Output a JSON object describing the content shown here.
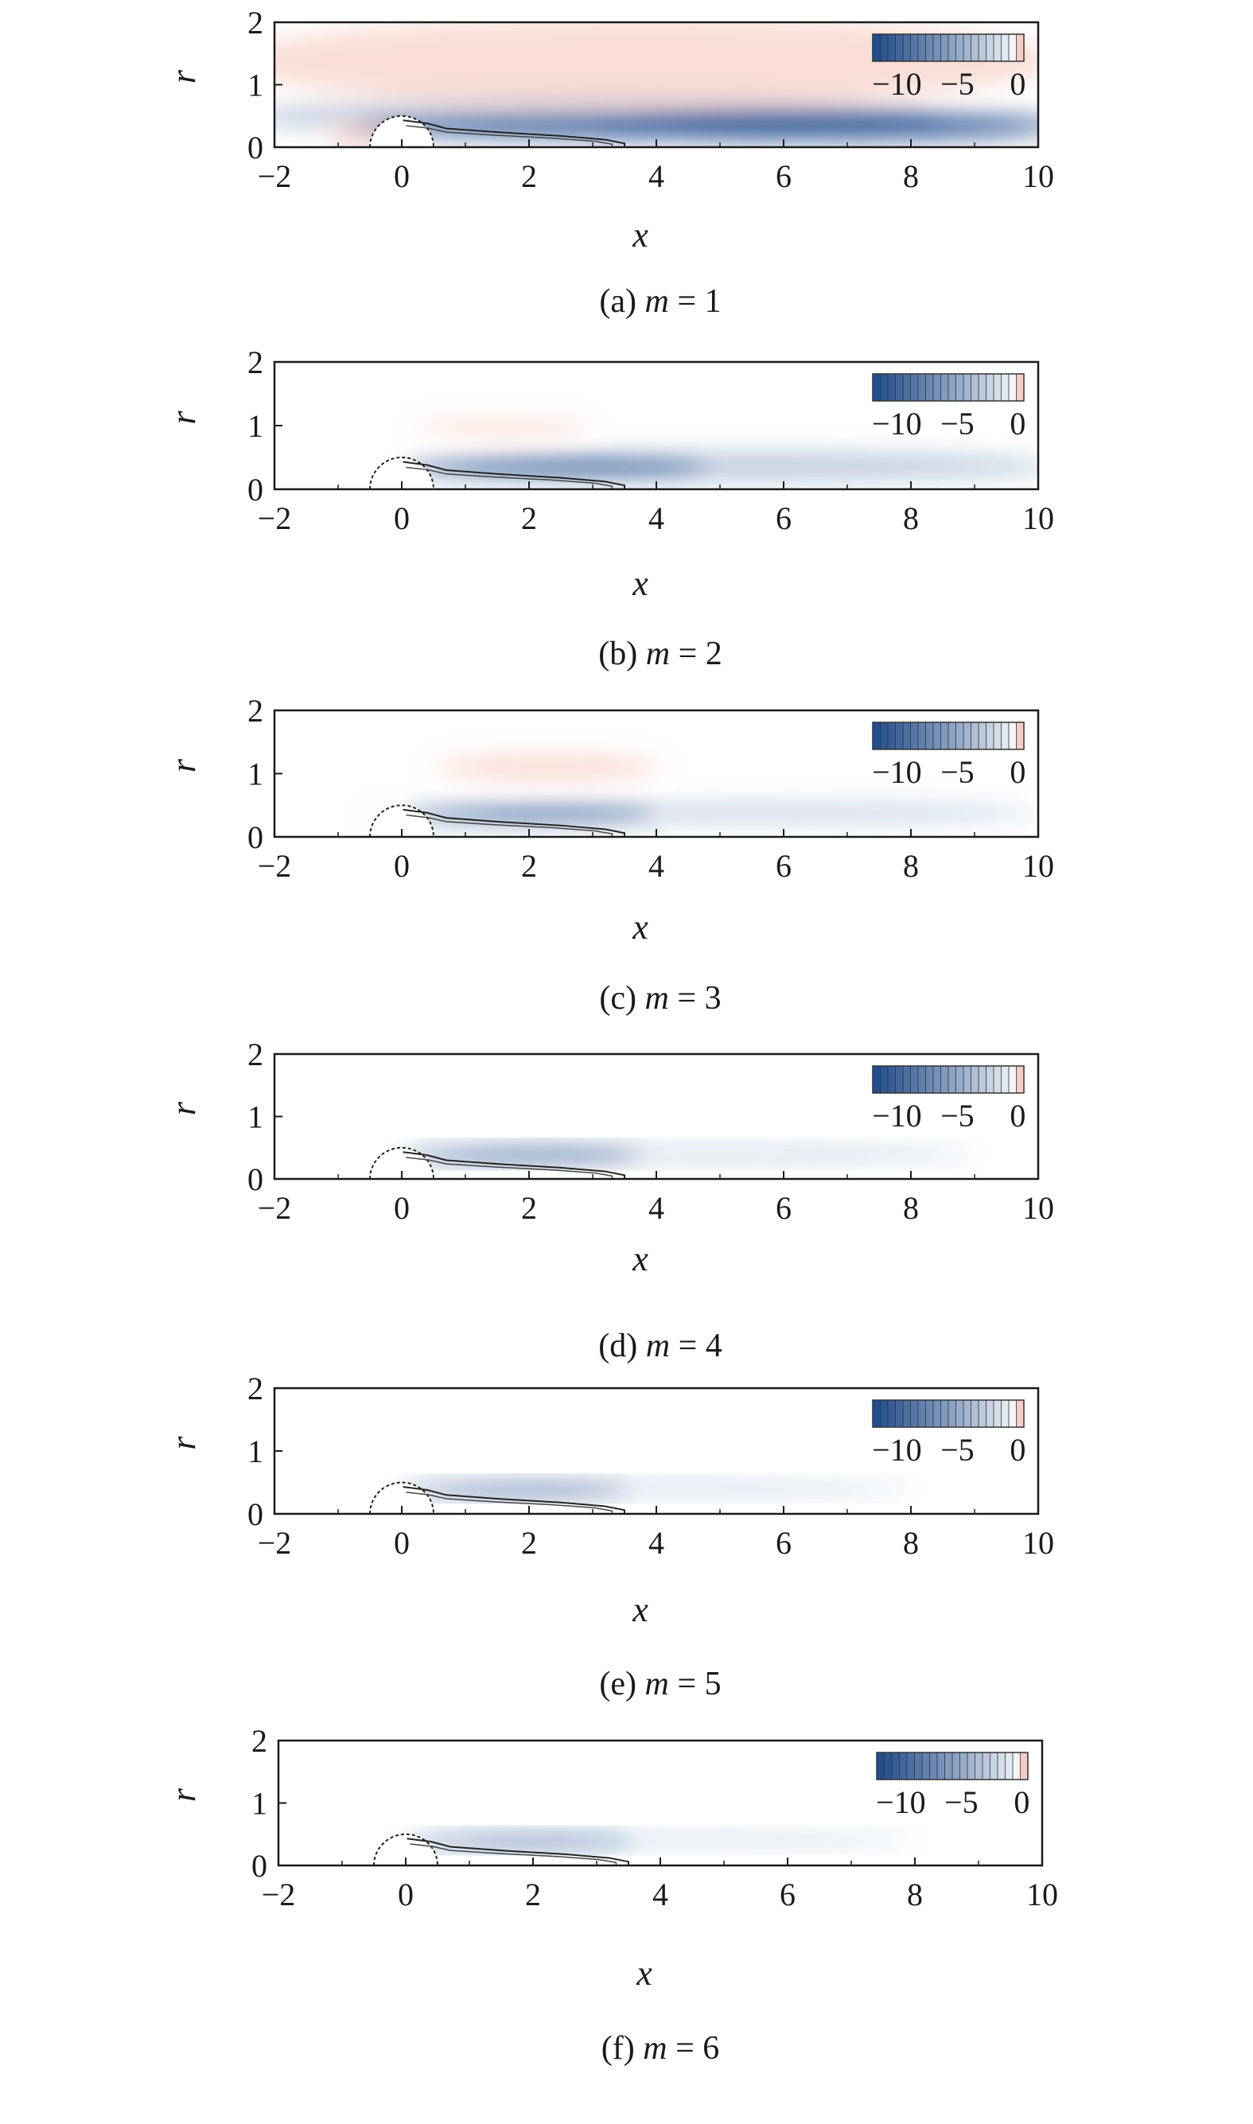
{
  "figure": {
    "panels": [
      {
        "id": "a",
        "caption_prefix": "(a)",
        "caption_var": "m",
        "caption_rest": " = 1"
      },
      {
        "id": "b",
        "caption_prefix": "(b)",
        "caption_var": "m",
        "caption_rest": " = 2"
      },
      {
        "id": "c",
        "caption_prefix": "(c)",
        "caption_var": "m",
        "caption_rest": " = 3"
      },
      {
        "id": "d",
        "caption_prefix": "(d)",
        "caption_var": "m",
        "caption_rest": " = 4"
      },
      {
        "id": "e",
        "caption_prefix": "(e)",
        "caption_var": "m",
        "caption_rest": " = 5"
      },
      {
        "id": "f",
        "caption_prefix": "(f)",
        "caption_var": "m",
        "caption_rest": " = 6"
      }
    ]
  },
  "chart_data": [
    {
      "type": "heatmap",
      "panel": "a",
      "m": 1,
      "xlabel": "x",
      "ylabel": "r",
      "xlim": [
        -2,
        10
      ],
      "ylim": [
        0,
        2
      ],
      "xticks": [
        "−2",
        "0",
        "2",
        "4",
        "6",
        "8",
        "10"
      ],
      "yticks": [
        "0",
        "1",
        "2"
      ],
      "colorbar": {
        "ticks": [
          "−10",
          "−5",
          "0"
        ],
        "range": [
          -12,
          0.5
        ],
        "placement": "top-right"
      },
      "colors": {
        "negative": "#1e4a8c",
        "positive": "#f4b5a6"
      },
      "fields": [
        {
          "kind": "neg",
          "cx": 4.6,
          "cy": 0.32,
          "rx": 5.4,
          "ry": 0.16,
          "a": 0.85
        },
        {
          "kind": "neg",
          "cx": 7.0,
          "cy": 0.35,
          "rx": 4.0,
          "ry": 0.26,
          "a": 0.45
        },
        {
          "kind": "neg",
          "cx": 3.0,
          "cy": 0.5,
          "rx": 5.5,
          "ry": 0.35,
          "a": 0.25
        },
        {
          "kind": "pos",
          "cx": 3.8,
          "cy": 1.38,
          "rx": 6.5,
          "ry": 0.7,
          "a": 0.45
        },
        {
          "kind": "pos",
          "cx": -0.7,
          "cy": 0.15,
          "rx": 0.5,
          "ry": 0.15,
          "a": 0.5
        }
      ],
      "contour": [
        [
          0.02,
          0.43
        ],
        [
          0.4,
          0.38
        ],
        [
          0.7,
          0.3
        ],
        [
          1.5,
          0.24
        ],
        [
          2.5,
          0.18
        ],
        [
          3.2,
          0.12
        ],
        [
          3.5,
          0.06
        ],
        [
          3.5,
          0.0
        ]
      ]
    },
    {
      "type": "heatmap",
      "panel": "b",
      "m": 2,
      "xlabel": "x",
      "ylabel": "r",
      "xlim": [
        -2,
        10
      ],
      "ylim": [
        0,
        2
      ],
      "xticks": [
        "−2",
        "0",
        "2",
        "4",
        "6",
        "8",
        "10"
      ],
      "yticks": [
        "0",
        "1",
        "2"
      ],
      "colorbar": {
        "ticks": [
          "−10",
          "−5",
          "0"
        ],
        "range": [
          -12,
          0.5
        ],
        "placement": "top-right"
      },
      "colors": {
        "negative": "#1e4a8c",
        "positive": "#f4b5a6"
      },
      "fields": [
        {
          "kind": "neg",
          "cx": 2.4,
          "cy": 0.34,
          "rx": 2.4,
          "ry": 0.12,
          "a": 0.85
        },
        {
          "kind": "neg",
          "cx": 5.5,
          "cy": 0.36,
          "rx": 4.8,
          "ry": 0.2,
          "a": 0.3
        },
        {
          "kind": "pos",
          "cx": 1.6,
          "cy": 0.98,
          "rx": 1.4,
          "ry": 0.13,
          "a": 0.4
        }
      ],
      "contour": [
        [
          0.02,
          0.43
        ],
        [
          0.4,
          0.38
        ],
        [
          0.7,
          0.3
        ],
        [
          1.5,
          0.24
        ],
        [
          2.5,
          0.18
        ],
        [
          3.2,
          0.12
        ],
        [
          3.5,
          0.06
        ],
        [
          3.5,
          0.0
        ]
      ]
    },
    {
      "type": "heatmap",
      "panel": "c",
      "m": 3,
      "xlabel": "x",
      "ylabel": "r",
      "xlim": [
        -2,
        10
      ],
      "ylim": [
        0,
        2
      ],
      "xticks": [
        "−2",
        "0",
        "2",
        "4",
        "6",
        "8",
        "10"
      ],
      "yticks": [
        "0",
        "1",
        "2"
      ],
      "colorbar": {
        "ticks": [
          "−10",
          "−5",
          "0"
        ],
        "range": [
          -12,
          0.5
        ],
        "placement": "top-right"
      },
      "colors": {
        "negative": "#1e4a8c",
        "positive": "#f4b5a6"
      },
      "fields": [
        {
          "kind": "neg",
          "cx": 2.0,
          "cy": 0.36,
          "rx": 2.0,
          "ry": 0.1,
          "a": 0.85
        },
        {
          "kind": "neg",
          "cx": 5.5,
          "cy": 0.38,
          "rx": 4.5,
          "ry": 0.15,
          "a": 0.22
        },
        {
          "kind": "pos",
          "cx": 2.3,
          "cy": 1.1,
          "rx": 1.8,
          "ry": 0.22,
          "a": 0.45
        },
        {
          "kind": "pos",
          "cx": -0.3,
          "cy": 0.35,
          "rx": 0.3,
          "ry": 0.08,
          "a": 0.3
        }
      ],
      "contour": [
        [
          0.02,
          0.43
        ],
        [
          0.4,
          0.38
        ],
        [
          0.7,
          0.3
        ],
        [
          1.5,
          0.24
        ],
        [
          2.5,
          0.18
        ],
        [
          3.2,
          0.12
        ],
        [
          3.5,
          0.06
        ],
        [
          3.5,
          0.0
        ]
      ]
    },
    {
      "type": "heatmap",
      "panel": "d",
      "m": 4,
      "xlabel": "x",
      "ylabel": "r",
      "xlim": [
        -2,
        10
      ],
      "ylim": [
        0,
        2
      ],
      "xticks": [
        "−2",
        "0",
        "2",
        "4",
        "6",
        "8",
        "10"
      ],
      "yticks": [
        "0",
        "1",
        "2"
      ],
      "colorbar": {
        "ticks": [
          "−10",
          "−5",
          "0"
        ],
        "range": [
          -12,
          0.5
        ],
        "placement": "top-right"
      },
      "colors": {
        "negative": "#1e4a8c",
        "positive": "#f4b5a6"
      },
      "fields": [
        {
          "kind": "neg",
          "cx": 1.9,
          "cy": 0.38,
          "rx": 1.9,
          "ry": 0.09,
          "a": 0.85
        },
        {
          "kind": "neg",
          "cx": 5.0,
          "cy": 0.4,
          "rx": 4.0,
          "ry": 0.13,
          "a": 0.18
        }
      ],
      "contour": [
        [
          0.02,
          0.43
        ],
        [
          0.4,
          0.38
        ],
        [
          0.7,
          0.3
        ],
        [
          1.5,
          0.24
        ],
        [
          2.5,
          0.18
        ],
        [
          3.2,
          0.12
        ],
        [
          3.5,
          0.06
        ],
        [
          3.5,
          0.0
        ]
      ]
    },
    {
      "type": "heatmap",
      "panel": "e",
      "m": 5,
      "xlabel": "x",
      "ylabel": "r",
      "xlim": [
        -2,
        10
      ],
      "ylim": [
        0,
        2
      ],
      "xticks": [
        "−2",
        "0",
        "2",
        "4",
        "6",
        "8",
        "10"
      ],
      "yticks": [
        "0",
        "1",
        "2"
      ],
      "colorbar": {
        "ticks": [
          "−10",
          "−5",
          "0"
        ],
        "range": [
          -12,
          0.5
        ],
        "placement": "top-right"
      },
      "colors": {
        "negative": "#1e4a8c",
        "positive": "#f4b5a6"
      },
      "fields": [
        {
          "kind": "neg",
          "cx": 1.8,
          "cy": 0.38,
          "rx": 1.8,
          "ry": 0.08,
          "a": 0.8
        },
        {
          "kind": "neg",
          "cx": 4.5,
          "cy": 0.4,
          "rx": 3.5,
          "ry": 0.12,
          "a": 0.16
        }
      ],
      "contour": [
        [
          0.02,
          0.43
        ],
        [
          0.4,
          0.38
        ],
        [
          0.7,
          0.3
        ],
        [
          1.5,
          0.24
        ],
        [
          2.5,
          0.18
        ],
        [
          3.2,
          0.12
        ],
        [
          3.5,
          0.06
        ],
        [
          3.5,
          0.0
        ]
      ]
    },
    {
      "type": "heatmap",
      "panel": "f",
      "m": 6,
      "xlabel": "x",
      "ylabel": "r",
      "xlim": [
        -2,
        10
      ],
      "ylim": [
        0,
        2
      ],
      "xticks": [
        "−2",
        "0",
        "2",
        "4",
        "6",
        "8",
        "10"
      ],
      "yticks": [
        "0",
        "1",
        "2"
      ],
      "colorbar": {
        "ticks": [
          "−10",
          "−5",
          "0"
        ],
        "range": [
          -12,
          0.5
        ],
        "placement": "top-right"
      },
      "colors": {
        "negative": "#1e4a8c",
        "positive": "#f4b5a6"
      },
      "fields": [
        {
          "kind": "neg",
          "cx": 1.8,
          "cy": 0.38,
          "rx": 1.8,
          "ry": 0.08,
          "a": 0.75
        },
        {
          "kind": "neg",
          "cx": 4.5,
          "cy": 0.4,
          "rx": 3.5,
          "ry": 0.12,
          "a": 0.15
        }
      ],
      "contour": [
        [
          0.02,
          0.43
        ],
        [
          0.4,
          0.38
        ],
        [
          0.7,
          0.3
        ],
        [
          1.5,
          0.24
        ],
        [
          2.5,
          0.18
        ],
        [
          3.2,
          0.12
        ],
        [
          3.5,
          0.06
        ],
        [
          3.5,
          0.0
        ]
      ]
    }
  ]
}
